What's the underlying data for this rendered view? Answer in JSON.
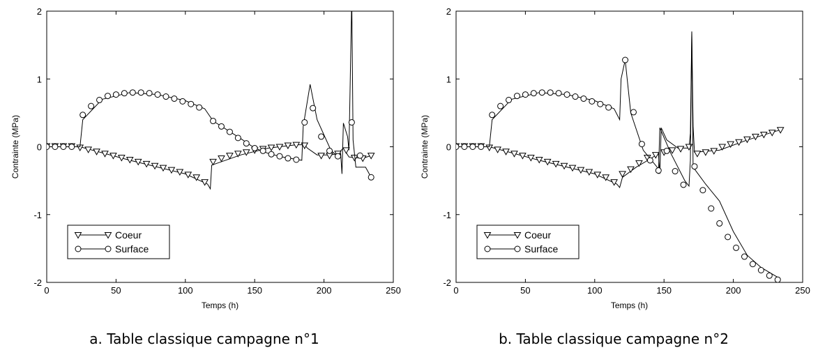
{
  "chart_data": [
    {
      "type": "line",
      "caption": "a. Table classique campagne n°1",
      "xlabel": "Temps (h)",
      "ylabel": "Contrainte (MPa)",
      "xlim": [
        0,
        250
      ],
      "ylim": [
        -2,
        2
      ],
      "xticks": [
        "0",
        "50",
        "100",
        "150",
        "200",
        "250"
      ],
      "yticks": [
        "-2",
        "-1",
        "0",
        "1",
        "2"
      ],
      "grid": false,
      "legend_position": "bottom-left",
      "series": [
        {
          "name": "Coeur",
          "marker": "triangle-down",
          "line": [
            [
              0,
              0
            ],
            [
              24,
              0
            ],
            [
              60,
              -0.2
            ],
            [
              100,
              -0.4
            ],
            [
              116,
              -0.55
            ],
            [
              118,
              -0.62
            ],
            [
              119,
              -0.27
            ],
            [
              140,
              -0.12
            ],
            [
              160,
              -0.02
            ],
            [
              180,
              0.03
            ],
            [
              186,
              0.03
            ],
            [
              188,
              -0.02
            ],
            [
              195,
              -0.12
            ],
            [
              205,
              -0.12
            ],
            [
              210,
              -0.1
            ],
            [
              214,
              -0.02
            ],
            [
              218,
              -0.15
            ],
            [
              228,
              -0.17
            ],
            [
              234,
              -0.13
            ]
          ],
          "markers": [
            [
              0,
              0.01
            ],
            [
              6,
              0.01
            ],
            [
              12,
              0.01
            ],
            [
              18,
              0.01
            ],
            [
              24,
              -0.01
            ],
            [
              30,
              -0.04
            ],
            [
              36,
              -0.07
            ],
            [
              42,
              -0.1
            ],
            [
              48,
              -0.13
            ],
            [
              54,
              -0.16
            ],
            [
              60,
              -0.19
            ],
            [
              66,
              -0.22
            ],
            [
              72,
              -0.25
            ],
            [
              78,
              -0.28
            ],
            [
              84,
              -0.31
            ],
            [
              90,
              -0.34
            ],
            [
              96,
              -0.37
            ],
            [
              102,
              -0.41
            ],
            [
              108,
              -0.45
            ],
            [
              114,
              -0.52
            ],
            [
              120,
              -0.22
            ],
            [
              126,
              -0.17
            ],
            [
              132,
              -0.13
            ],
            [
              138,
              -0.1
            ],
            [
              144,
              -0.08
            ],
            [
              150,
              -0.05
            ],
            [
              156,
              -0.03
            ],
            [
              162,
              -0.01
            ],
            [
              168,
              0.0
            ],
            [
              174,
              0.02
            ],
            [
              180,
              0.03
            ],
            [
              186,
              0.02
            ],
            [
              198,
              -0.13
            ],
            [
              204,
              -0.13
            ],
            [
              210,
              -0.1
            ],
            [
              216,
              -0.05
            ],
            [
              222,
              -0.16
            ],
            [
              228,
              -0.17
            ],
            [
              234,
              -0.13
            ]
          ]
        },
        {
          "name": "Surface",
          "marker": "circle",
          "line": [
            [
              0,
              0
            ],
            [
              24,
              0
            ],
            [
              26,
              0.4
            ],
            [
              40,
              0.7
            ],
            [
              60,
              0.8
            ],
            [
              80,
              0.77
            ],
            [
              100,
              0.68
            ],
            [
              114,
              0.56
            ],
            [
              120,
              0.38
            ],
            [
              140,
              0.12
            ],
            [
              150,
              -0.02
            ],
            [
              160,
              -0.1
            ],
            [
              170,
              -0.15
            ],
            [
              184,
              -0.2
            ],
            [
              185,
              0.3
            ],
            [
              190,
              0.92
            ],
            [
              195,
              0.4
            ],
            [
              205,
              -0.05
            ],
            [
              210,
              -0.15
            ],
            [
              212,
              -0.1
            ],
            [
              213,
              -0.4
            ],
            [
              214,
              0.35
            ],
            [
              217,
              0.15
            ],
            [
              218,
              -0.05
            ],
            [
              220,
              2.2
            ],
            [
              221,
              0.1
            ],
            [
              223,
              -0.3
            ],
            [
              230,
              -0.3
            ],
            [
              234,
              -0.45
            ]
          ],
          "markers": [
            [
              0,
              0.0
            ],
            [
              6,
              0.0
            ],
            [
              12,
              0.0
            ],
            [
              18,
              0.0
            ],
            [
              26,
              0.47
            ],
            [
              32,
              0.6
            ],
            [
              38,
              0.69
            ],
            [
              44,
              0.75
            ],
            [
              50,
              0.77
            ],
            [
              56,
              0.79
            ],
            [
              62,
              0.8
            ],
            [
              68,
              0.8
            ],
            [
              74,
              0.79
            ],
            [
              80,
              0.77
            ],
            [
              86,
              0.74
            ],
            [
              92,
              0.71
            ],
            [
              98,
              0.67
            ],
            [
              104,
              0.63
            ],
            [
              110,
              0.58
            ],
            [
              120,
              0.38
            ],
            [
              126,
              0.3
            ],
            [
              132,
              0.22
            ],
            [
              138,
              0.13
            ],
            [
              144,
              0.05
            ],
            [
              150,
              -0.02
            ],
            [
              156,
              -0.06
            ],
            [
              162,
              -0.11
            ],
            [
              168,
              -0.14
            ],
            [
              174,
              -0.17
            ],
            [
              180,
              -0.19
            ],
            [
              186,
              0.36
            ],
            [
              192,
              0.57
            ],
            [
              198,
              0.15
            ],
            [
              204,
              -0.06
            ],
            [
              210,
              -0.14
            ],
            [
              220,
              0.36
            ],
            [
              226,
              -0.13
            ],
            [
              234,
              -0.45
            ]
          ]
        }
      ]
    },
    {
      "type": "line",
      "caption": "b. Table classique campagne n°2",
      "xlabel": "Temps (h)",
      "ylabel": "Contrainte (MPa)",
      "xlim": [
        0,
        250
      ],
      "ylim": [
        -2,
        2
      ],
      "xticks": [
        "0",
        "50",
        "100",
        "150",
        "200",
        "250"
      ],
      "yticks": [
        "-2",
        "-1",
        "0",
        "1",
        "2"
      ],
      "grid": false,
      "legend_position": "bottom-left",
      "series": [
        {
          "name": "Coeur",
          "marker": "triangle-down",
          "line": [
            [
              0,
              0
            ],
            [
              24,
              0
            ],
            [
              60,
              -0.2
            ],
            [
              100,
              -0.4
            ],
            [
              116,
              -0.55
            ],
            [
              118,
              -0.6
            ],
            [
              120,
              -0.45
            ],
            [
              130,
              -0.3
            ],
            [
              140,
              -0.18
            ],
            [
              146,
              -0.1
            ],
            [
              147,
              -0.4
            ],
            [
              148,
              0.28
            ],
            [
              152,
              0.1
            ],
            [
              160,
              -0.02
            ],
            [
              168,
              -0.02
            ],
            [
              169,
              0.2
            ],
            [
              170,
              1.7
            ],
            [
              171,
              0.3
            ],
            [
              172,
              -0.08
            ],
            [
              190,
              -0.05
            ],
            [
              210,
              0.1
            ],
            [
              234,
              0.25
            ]
          ],
          "markers": [
            [
              0,
              0.01
            ],
            [
              6,
              0.01
            ],
            [
              12,
              0.01
            ],
            [
              18,
              0.01
            ],
            [
              24,
              -0.01
            ],
            [
              30,
              -0.04
            ],
            [
              36,
              -0.07
            ],
            [
              42,
              -0.1
            ],
            [
              48,
              -0.13
            ],
            [
              54,
              -0.16
            ],
            [
              60,
              -0.19
            ],
            [
              66,
              -0.22
            ],
            [
              72,
              -0.25
            ],
            [
              78,
              -0.28
            ],
            [
              84,
              -0.31
            ],
            [
              90,
              -0.34
            ],
            [
              96,
              -0.37
            ],
            [
              102,
              -0.41
            ],
            [
              108,
              -0.45
            ],
            [
              114,
              -0.52
            ],
            [
              120,
              -0.4
            ],
            [
              126,
              -0.33
            ],
            [
              132,
              -0.24
            ],
            [
              138,
              -0.16
            ],
            [
              144,
              -0.12
            ],
            [
              150,
              -0.08
            ],
            [
              156,
              -0.05
            ],
            [
              162,
              -0.03
            ],
            [
              168,
              0.0
            ],
            [
              174,
              -0.1
            ],
            [
              180,
              -0.08
            ],
            [
              186,
              -0.06
            ],
            [
              192,
              0.0
            ],
            [
              198,
              0.04
            ],
            [
              204,
              0.07
            ],
            [
              210,
              0.11
            ],
            [
              216,
              0.15
            ],
            [
              222,
              0.18
            ],
            [
              228,
              0.21
            ],
            [
              234,
              0.25
            ]
          ]
        },
        {
          "name": "Surface",
          "marker": "circle",
          "line": [
            [
              0,
              0
            ],
            [
              24,
              0
            ],
            [
              26,
              0.4
            ],
            [
              40,
              0.7
            ],
            [
              60,
              0.8
            ],
            [
              80,
              0.77
            ],
            [
              100,
              0.68
            ],
            [
              114,
              0.56
            ],
            [
              118,
              0.4
            ],
            [
              119,
              1.0
            ],
            [
              122,
              1.28
            ],
            [
              126,
              0.5
            ],
            [
              135,
              -0.05
            ],
            [
              145,
              -0.3
            ],
            [
              146,
              -0.4
            ],
            [
              147,
              0.28
            ],
            [
              155,
              -0.1
            ],
            [
              165,
              -0.5
            ],
            [
              168,
              -0.58
            ],
            [
              169,
              -0.2
            ],
            [
              170,
              1.7
            ],
            [
              171,
              -0.3
            ],
            [
              180,
              -0.55
            ],
            [
              190,
              -0.8
            ],
            [
              200,
              -1.25
            ],
            [
              210,
              -1.6
            ],
            [
              220,
              -1.78
            ],
            [
              234,
              -1.95
            ]
          ],
          "markers": [
            [
              0,
              0.0
            ],
            [
              6,
              0.0
            ],
            [
              12,
              0.0
            ],
            [
              18,
              0.0
            ],
            [
              26,
              0.47
            ],
            [
              32,
              0.6
            ],
            [
              38,
              0.69
            ],
            [
              44,
              0.75
            ],
            [
              50,
              0.77
            ],
            [
              56,
              0.79
            ],
            [
              62,
              0.8
            ],
            [
              68,
              0.8
            ],
            [
              74,
              0.79
            ],
            [
              80,
              0.77
            ],
            [
              86,
              0.74
            ],
            [
              92,
              0.71
            ],
            [
              98,
              0.67
            ],
            [
              104,
              0.63
            ],
            [
              110,
              0.58
            ],
            [
              122,
              1.28
            ],
            [
              128,
              0.51
            ],
            [
              134,
              0.04
            ],
            [
              140,
              -0.2
            ],
            [
              146,
              -0.35
            ],
            [
              152,
              -0.06
            ],
            [
              158,
              -0.36
            ],
            [
              164,
              -0.56
            ],
            [
              172,
              -0.29
            ],
            [
              178,
              -0.64
            ],
            [
              184,
              -0.91
            ],
            [
              190,
              -1.13
            ],
            [
              196,
              -1.33
            ],
            [
              202,
              -1.49
            ],
            [
              208,
              -1.62
            ],
            [
              214,
              -1.73
            ],
            [
              220,
              -1.82
            ],
            [
              226,
              -1.9
            ],
            [
              232,
              -1.96
            ]
          ]
        }
      ]
    }
  ]
}
